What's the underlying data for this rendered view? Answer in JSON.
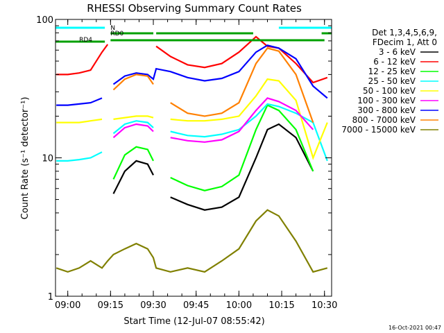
{
  "chart_data": {
    "type": "line",
    "title": "RHESSI Observing Summary Count Rates",
    "xlabel": "Start Time (12-Jul-07 08:55:42)",
    "ylabel": "Count Rate (s⁻¹ detector⁻¹)",
    "yscale": "log",
    "ylim": [
      1,
      100
    ],
    "xlim": [
      "08:55:42",
      "10:32:30"
    ],
    "x_ticks": [
      "09:00",
      "09:15",
      "09:30",
      "09:45",
      "10:00",
      "10:15",
      "10:30"
    ],
    "y_ticks": [
      "1",
      "10",
      "100"
    ],
    "legend_header": [
      "Det 1,3,4,5,6,9,",
      "FDecim 1, Att 0"
    ],
    "legend_position": "right",
    "footer": "16-Oct-2021 00:47",
    "flags": [
      {
        "name": "N",
        "color": "#00ffff"
      },
      {
        "name": "RD0",
        "color": "#00a000"
      },
      {
        "name": "RD4",
        "color": "#00a000"
      }
    ],
    "series": [
      {
        "name": "3 - 6 keV",
        "color": "#000000",
        "values": [
          0,
          0,
          0,
          0,
          0,
          0,
          5.5,
          8,
          9.5,
          9,
          7.5,
          0,
          5.2,
          4.6,
          4.2,
          4.4,
          5.2,
          10,
          16,
          17.5,
          14,
          8,
          0
        ]
      },
      {
        "name": "6 - 12 keV",
        "color": "#ff0000",
        "values": [
          40,
          40,
          41,
          43,
          58,
          66,
          0,
          0,
          0,
          0,
          0,
          64,
          54,
          47,
          45,
          48,
          58,
          75,
          64,
          62,
          48,
          35,
          38
        ]
      },
      {
        "name": "12 - 25 keV",
        "color": "#00ff00",
        "values": [
          0,
          0,
          0,
          0,
          0,
          0,
          7,
          10.5,
          12,
          11.5,
          9.5,
          0,
          7.2,
          6.3,
          5.8,
          6.2,
          7.5,
          16,
          24,
          22,
          16,
          8,
          0
        ]
      },
      {
        "name": "25 - 50 keV",
        "color": "#00ffff",
        "values": [
          9.5,
          9.5,
          9.7,
          10,
          11,
          0,
          15,
          17.5,
          18.5,
          18,
          16.5,
          0,
          15.5,
          14.5,
          14.2,
          14.8,
          16,
          20,
          24.5,
          23.5,
          21,
          18,
          9.5
        ]
      },
      {
        "name": "50 - 100 keV",
        "color": "#ffff00",
        "values": [
          18,
          18,
          18,
          18.5,
          19,
          0,
          19,
          19.5,
          20,
          20,
          19.5,
          0,
          19,
          18.5,
          18.5,
          19,
          20,
          28,
          37,
          36,
          26,
          10,
          18
        ]
      },
      {
        "name": "100 - 300 keV",
        "color": "#ff00ff",
        "values": [
          0,
          0,
          0,
          0,
          0,
          0,
          14,
          16.5,
          17.5,
          17,
          15.5,
          0,
          14,
          13.3,
          13,
          13.5,
          15.5,
          22,
          27,
          25.5,
          22,
          16,
          0
        ]
      },
      {
        "name": "300 - 800 keV",
        "color": "#0000ff",
        "values": [
          24,
          24,
          24.5,
          25,
          27,
          0,
          34,
          39,
          41,
          40,
          37,
          44,
          42,
          38,
          36,
          37.5,
          42,
          58,
          65,
          62,
          52,
          33,
          27
        ]
      },
      {
        "name": "800 - 7000 keV",
        "color": "#ff8000",
        "values": [
          0,
          0,
          0,
          0,
          0,
          0,
          31,
          37,
          40,
          39,
          34,
          0,
          25,
          21,
          20,
          21,
          25,
          48,
          62,
          59,
          40,
          18,
          0
        ]
      },
      {
        "name": "7000 - 15000 keV",
        "color": "#808000",
        "values": [
          1.6,
          1.5,
          1.6,
          1.8,
          1.6,
          1.8,
          2,
          2.2,
          2.4,
          2.2,
          1.9,
          1.6,
          1.5,
          1.6,
          1.5,
          1.8,
          2.2,
          3.5,
          4.2,
          3.8,
          2.5,
          1.5,
          1.6
        ]
      }
    ],
    "x": [
      "08:56",
      "09:00",
      "09:04",
      "09:08",
      "09:12",
      "09:14",
      "09:16",
      "09:20",
      "09:24",
      "09:28",
      "09:30",
      "09:31",
      "09:36",
      "09:42",
      "09:48",
      "09:54",
      "10:00",
      "10:06",
      "10:10",
      "10:14",
      "10:20",
      "10:26",
      "10:31"
    ]
  }
}
